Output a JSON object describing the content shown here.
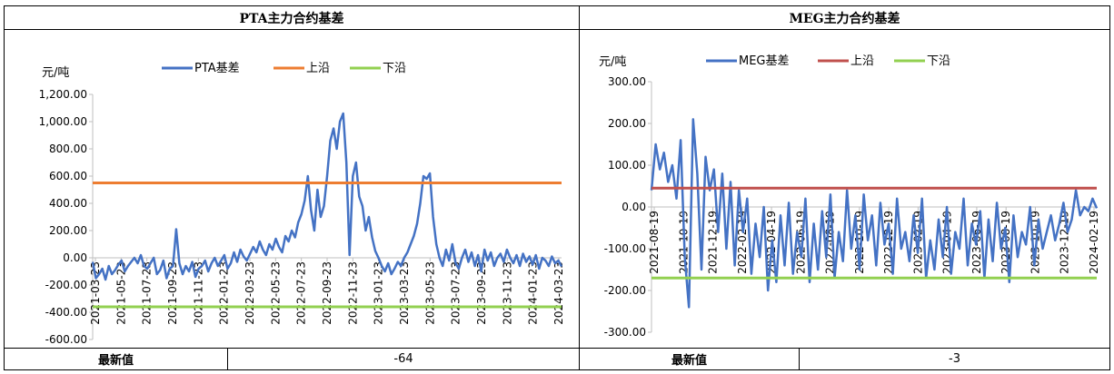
{
  "left_panel": {
    "title": "PTA主力合约基差",
    "footer_label": "最新值",
    "footer_value": "-64"
  },
  "right_panel": {
    "title": "MEG主力合约基差",
    "footer_label": "最新值",
    "footer_value": "-3"
  },
  "chart_data": [
    {
      "type": "line",
      "unit_label": "元/吨",
      "ylim": [
        -600,
        1200
      ],
      "yticks": [
        1200,
        1000,
        800,
        600,
        400,
        200,
        0,
        -200,
        -400,
        -600
      ],
      "ytick_labels": [
        "1,200.00",
        "1,000.00",
        "800.00",
        "600.00",
        "400.00",
        "200.00",
        "0.00",
        "-200.00",
        "-400.00",
        "-600.00"
      ],
      "x_ticks": [
        "2021-03-23",
        "2021-05-23",
        "2021-07-23",
        "2021-09-23",
        "2021-11-23",
        "2022-01-23",
        "2022-03-23",
        "2022-05-23",
        "2022-07-23",
        "2022-09-23",
        "2022-11-23",
        "2023-01-23",
        "2023-03-23",
        "2023-05-23",
        "2023-07-23",
        "2023-09-23",
        "2023-11-23",
        "2024-01-23",
        "2024-03-23"
      ],
      "series": [
        {
          "name": "PTA基差",
          "color": "#4472c4",
          "values": [
            -30,
            -150,
            -120,
            -80,
            -160,
            -60,
            -120,
            -90,
            -50,
            -20,
            -100,
            -60,
            -30,
            0,
            -40,
            20,
            -60,
            -80,
            -40,
            0,
            -120,
            -90,
            -20,
            -150,
            -80,
            -60,
            210,
            -40,
            -120,
            -60,
            -100,
            -30,
            -140,
            -80,
            -60,
            -20,
            -100,
            -40,
            0,
            -60,
            -20,
            20,
            -80,
            -40,
            40,
            -30,
            60,
            10,
            -20,
            30,
            80,
            40,
            120,
            60,
            20,
            100,
            60,
            140,
            80,
            40,
            160,
            120,
            200,
            150,
            260,
            320,
            420,
            600,
            350,
            200,
            500,
            300,
            380,
            600,
            860,
            950,
            800,
            1000,
            1060,
            700,
            20,
            600,
            700,
            450,
            380,
            200,
            300,
            150,
            50,
            0,
            -60,
            -100,
            -40,
            -120,
            -80,
            -30,
            -60,
            0,
            40,
            100,
            160,
            250,
            400,
            600,
            580,
            620,
            300,
            100,
            0,
            -60,
            60,
            -20,
            100,
            -40,
            -80,
            0,
            60,
            -30,
            40,
            -60,
            20,
            -100,
            60,
            -20,
            40,
            -60,
            0,
            30,
            -30,
            60,
            0,
            -40,
            20,
            -60,
            30,
            -30,
            10,
            -50,
            20,
            -80,
            0,
            -20,
            -60,
            10,
            -40,
            -20,
            -64
          ]
        },
        {
          "name": "上沿",
          "color": "#ed7d31",
          "values": [
            550,
            550
          ]
        },
        {
          "name": "下沿",
          "color": "#92d050",
          "values": [
            -360,
            -360
          ]
        }
      ]
    },
    {
      "type": "line",
      "unit_label": "元/吨",
      "ylim": [
        -300,
        300
      ],
      "yticks": [
        300,
        200,
        100,
        0,
        -100,
        -200,
        -300
      ],
      "ytick_labels": [
        "300.00",
        "200.00",
        "100.00",
        "0.00",
        "-100.00",
        "-200.00",
        "-300.00"
      ],
      "x_ticks": [
        "2021-08-19",
        "2021-10-19",
        "2021-12-19",
        "2022-02-19",
        "2022-04-19",
        "2022-06-19",
        "2022-08-19",
        "2022-10-19",
        "2022-12-19",
        "2023-02-19",
        "2023-04-19",
        "2023-06-19",
        "2023-08-19",
        "2023-10-19",
        "2023-12-19",
        "2024-02-19"
      ],
      "series": [
        {
          "name": "MEG基差",
          "color": "#4472c4",
          "values": [
            40,
            150,
            90,
            130,
            60,
            100,
            20,
            160,
            -120,
            -240,
            210,
            80,
            -150,
            120,
            40,
            90,
            -60,
            80,
            -100,
            60,
            -140,
            40,
            -60,
            20,
            -160,
            -40,
            -120,
            0,
            -200,
            -80,
            -180,
            -20,
            -140,
            10,
            -160,
            -60,
            -120,
            20,
            -180,
            -40,
            -150,
            -10,
            -120,
            30,
            -170,
            -60,
            -130,
            40,
            -100,
            -20,
            -150,
            30,
            -80,
            -20,
            -140,
            10,
            -90,
            -40,
            -160,
            20,
            -100,
            -60,
            -130,
            -20,
            -110,
            20,
            -170,
            -80,
            -150,
            -30,
            -120,
            0,
            -160,
            -60,
            -100,
            20,
            -140,
            -40,
            -90,
            -10,
            -170,
            -30,
            -130,
            10,
            -100,
            -50,
            -180,
            -20,
            -120,
            -60,
            -90,
            0,
            -140,
            -30,
            -100,
            -60,
            -20,
            -80,
            -40,
            10,
            -60,
            -30,
            40,
            -20,
            0,
            -10,
            20,
            -3
          ]
        },
        {
          "name": "上沿",
          "color": "#c0504d",
          "values": [
            45,
            45
          ]
        },
        {
          "name": "下沿",
          "color": "#92d050",
          "values": [
            -170,
            -170
          ]
        }
      ]
    }
  ]
}
